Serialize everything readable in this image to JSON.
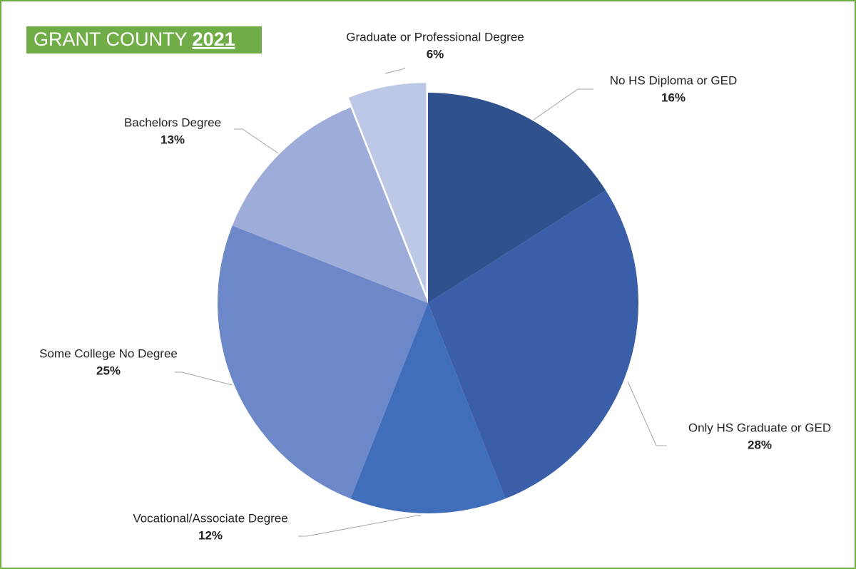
{
  "chart_data": {
    "type": "pie",
    "title": {
      "text": "GRANT COUNTY",
      "year": "2021"
    },
    "categories": [
      "No HS Diploma or GED",
      "Only HS Graduate or GED",
      "Vocational/Associate Degree",
      "Some College No Degree",
      "Bachelors Degree",
      "Graduate or Professional Degree"
    ],
    "values": [
      16,
      28,
      12,
      25,
      13,
      6
    ],
    "value_labels": [
      "16%",
      "28%",
      "12%",
      "25%",
      "13%",
      "6%"
    ],
    "colors": [
      "#2f528f",
      "#3a5fa8",
      "#416eba",
      "#6d88c9",
      "#9dacd9",
      "#bdc8e6"
    ],
    "exploded": [
      5
    ]
  }
}
